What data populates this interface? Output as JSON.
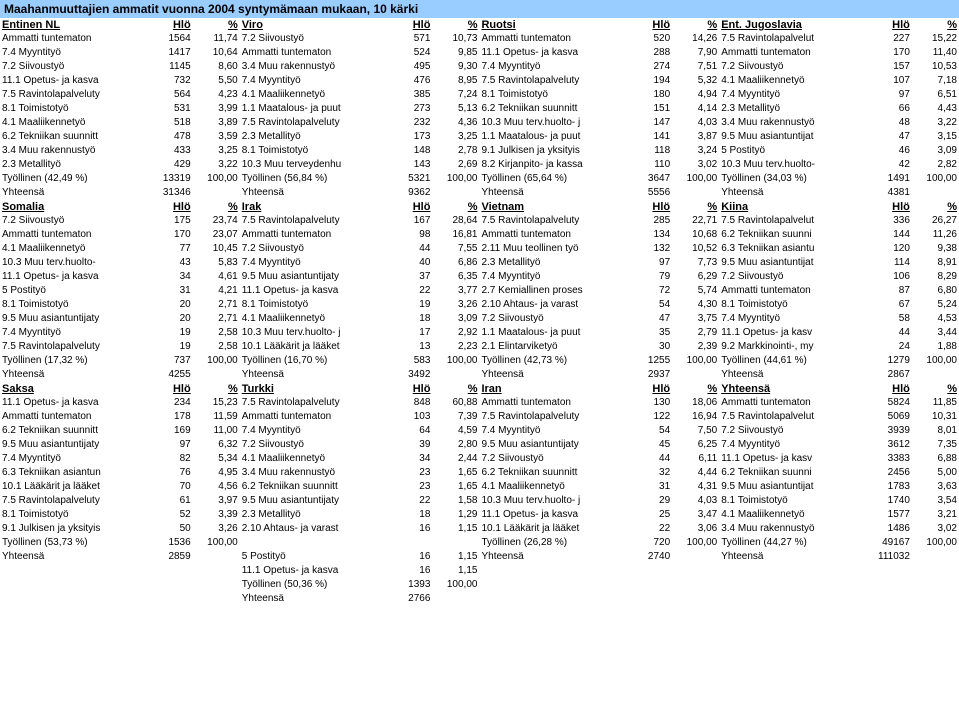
{
  "title": "Maahanmuuttajien ammatit vuonna 2004 syntymämaan mukaan, 10 kärki",
  "colors": {
    "header_bg": "#99ccff",
    "text": "#000000"
  },
  "col_labels": {
    "hlo": "Hlö",
    "pct": "%"
  },
  "countries": [
    [
      {
        "name": "Entinen NL",
        "rows": [
          [
            "Ammatti tuntematon",
            "1564",
            "11,74"
          ],
          [
            "7.4 Myyntityö",
            "1417",
            "10,64"
          ],
          [
            "7.2 Siivoustyö",
            "1145",
            "8,60"
          ],
          [
            "11.1 Opetus- ja kasva",
            "732",
            "5,50"
          ],
          [
            "7.5 Ravintolapalveluty",
            "564",
            "4,23"
          ],
          [
            "8.1 Toimistotyö",
            "531",
            "3,99"
          ],
          [
            "4.1 Maaliikennetyö",
            "518",
            "3,89"
          ],
          [
            "6.2 Tekniikan suunnitt",
            "478",
            "3,59"
          ],
          [
            "3.4 Muu rakennustyö",
            "433",
            "3,25"
          ],
          [
            "2.3 Metallityö",
            "429",
            "3,22"
          ]
        ],
        "emp": [
          "Työllinen (42,49 %)",
          "13319",
          "100,00"
        ],
        "tot": [
          "Yhteensä",
          "31346",
          ""
        ]
      },
      {
        "name": "Viro",
        "rows": [
          [
            "7.2 Siivoustyö",
            "571",
            "10,73"
          ],
          [
            "Ammatti tuntematon",
            "524",
            "9,85"
          ],
          [
            "3.4 Muu rakennustyö",
            "495",
            "9,30"
          ],
          [
            "7.4 Myyntityö",
            "476",
            "8,95"
          ],
          [
            "4.1 Maaliikennetyö",
            "385",
            "7,24"
          ],
          [
            "1.1 Maatalous- ja puut",
            "273",
            "5,13"
          ],
          [
            "7.5 Ravintolapalveluty",
            "232",
            "4,36"
          ],
          [
            "2.3 Metallityö",
            "173",
            "3,25"
          ],
          [
            "8.1 Toimistotyö",
            "148",
            "2,78"
          ],
          [
            "10.3 Muu terveydenhu",
            "143",
            "2,69"
          ]
        ],
        "emp": [
          "Työllinen (56,84 %)",
          "5321",
          "100,00"
        ],
        "tot": [
          "Yhteensä",
          "9362",
          ""
        ]
      },
      {
        "name": "Ruotsi",
        "rows": [
          [
            "Ammatti tuntematon",
            "520",
            "14,26"
          ],
          [
            "11.1 Opetus- ja kasva",
            "288",
            "7,90"
          ],
          [
            "7.4 Myyntityö",
            "274",
            "7,51"
          ],
          [
            "7.5 Ravintolapalveluty",
            "194",
            "5,32"
          ],
          [
            "8.1 Toimistotyö",
            "180",
            "4,94"
          ],
          [
            "6.2 Tekniikan suunnitt",
            "151",
            "4,14"
          ],
          [
            "10.3 Muu terv.huolto- j",
            "147",
            "4,03"
          ],
          [
            "1.1 Maatalous- ja puut",
            "141",
            "3,87"
          ],
          [
            "9.1 Julkisen ja yksityis",
            "118",
            "3,24"
          ],
          [
            "8.2 Kirjanpito- ja kassa",
            "110",
            "3,02"
          ]
        ],
        "emp": [
          "Työllinen (65,64 %)",
          "3647",
          "100,00"
        ],
        "tot": [
          "Yhteensä",
          "5556",
          ""
        ]
      },
      {
        "name": "Ent. Jugoslavia",
        "rows": [
          [
            "7.5 Ravintolapalvelut",
            "227",
            "15,22"
          ],
          [
            "Ammatti tuntematon",
            "170",
            "11,40"
          ],
          [
            "7.2 Siivoustyö",
            "157",
            "10,53"
          ],
          [
            "4.1 Maaliikennetyö",
            "107",
            "7,18"
          ],
          [
            "7.4 Myyntityö",
            "97",
            "6,51"
          ],
          [
            "2.3 Metallityö",
            "66",
            "4,43"
          ],
          [
            "3.4 Muu rakennustyö",
            "48",
            "3,22"
          ],
          [
            "9.5 Muu asiantuntijat",
            "47",
            "3,15"
          ],
          [
            "5 Postityö",
            "46",
            "3,09"
          ],
          [
            "10.3 Muu terv.huolto-",
            "42",
            "2,82"
          ]
        ],
        "emp": [
          "Työllinen (34,03 %)",
          "1491",
          "100,00"
        ],
        "tot": [
          "Yhteensä",
          "4381",
          ""
        ]
      }
    ],
    [
      {
        "name": "Somalia",
        "rows": [
          [
            "7.2 Siivoustyö",
            "175",
            "23,74"
          ],
          [
            "Ammatti tuntematon",
            "170",
            "23,07"
          ],
          [
            "4.1 Maaliikennetyö",
            "77",
            "10,45"
          ],
          [
            "10.3 Muu terv.huolto-",
            "43",
            "5,83"
          ],
          [
            "11.1 Opetus- ja kasva",
            "34",
            "4,61"
          ],
          [
            "5 Postityö",
            "31",
            "4,21"
          ],
          [
            "8.1 Toimistotyö",
            "20",
            "2,71"
          ],
          [
            "9.5 Muu asiantuntijaty",
            "20",
            "2,71"
          ],
          [
            "7.4 Myyntityö",
            "19",
            "2,58"
          ],
          [
            "7.5 Ravintolapalveluty",
            "19",
            "2,58"
          ]
        ],
        "emp": [
          "Työllinen (17,32 %)",
          "737",
          "100,00"
        ],
        "tot": [
          "Yhteensä",
          "4255",
          ""
        ]
      },
      {
        "name": "Irak",
        "rows": [
          [
            "7.5 Ravintolapalveluty",
            "167",
            "28,64"
          ],
          [
            "Ammatti tuntematon",
            "98",
            "16,81"
          ],
          [
            "7.2 Siivoustyö",
            "44",
            "7,55"
          ],
          [
            "7.4 Myyntityö",
            "40",
            "6,86"
          ],
          [
            "9.5 Muu asiantuntijaty",
            "37",
            "6,35"
          ],
          [
            "11.1 Opetus- ja kasva",
            "22",
            "3,77"
          ],
          [
            "8.1 Toimistotyö",
            "19",
            "3,26"
          ],
          [
            "4.1 Maaliikennetyö",
            "18",
            "3,09"
          ],
          [
            "10.3 Muu terv.huolto- j",
            "17",
            "2,92"
          ],
          [
            "10.1 Lääkärit ja lääket",
            "13",
            "2,23"
          ]
        ],
        "emp": [
          "Työllinen (16,70 %)",
          "583",
          "100,00"
        ],
        "tot": [
          "Yhteensä",
          "3492",
          ""
        ]
      },
      {
        "name": "Vietnam",
        "rows": [
          [
            "7.5 Ravintolapalveluty",
            "285",
            "22,71"
          ],
          [
            "Ammatti tuntematon",
            "134",
            "10,68"
          ],
          [
            "2.11 Muu teollinen työ",
            "132",
            "10,52"
          ],
          [
            "2.3 Metallityö",
            "97",
            "7,73"
          ],
          [
            "7.4 Myyntityö",
            "79",
            "6,29"
          ],
          [
            "2.7 Kemiallinen proses",
            "72",
            "5,74"
          ],
          [
            "2.10 Ahtaus- ja varast",
            "54",
            "4,30"
          ],
          [
            "7.2 Siivoustyö",
            "47",
            "3,75"
          ],
          [
            "1.1 Maatalous- ja puut",
            "35",
            "2,79"
          ],
          [
            "2.1 Elintarviketyö",
            "30",
            "2,39"
          ]
        ],
        "emp": [
          "Työllinen (42,73 %)",
          "1255",
          "100,00"
        ],
        "tot": [
          "Yhteensä",
          "2937",
          ""
        ]
      },
      {
        "name": "Kiina",
        "rows": [
          [
            "7.5 Ravintolapalvelut",
            "336",
            "26,27"
          ],
          [
            "6.2 Tekniikan suunni",
            "144",
            "11,26"
          ],
          [
            "6.3 Tekniikan asiantu",
            "120",
            "9,38"
          ],
          [
            "9.5 Muu asiantuntijat",
            "114",
            "8,91"
          ],
          [
            "7.2 Siivoustyö",
            "106",
            "8,29"
          ],
          [
            "Ammatti tuntematon",
            "87",
            "6,80"
          ],
          [
            "8.1 Toimistotyö",
            "67",
            "5,24"
          ],
          [
            "7.4 Myyntityö",
            "58",
            "4,53"
          ],
          [
            "11.1 Opetus- ja kasv",
            "44",
            "3,44"
          ],
          [
            "9.2 Markkinointi-, my",
            "24",
            "1,88"
          ]
        ],
        "emp": [
          "Työllinen (44,61 %)",
          "1279",
          "100,00"
        ],
        "tot": [
          "Yhteensä",
          "2867",
          ""
        ]
      }
    ],
    [
      {
        "name": "Saksa",
        "rows": [
          [
            "11.1 Opetus- ja kasva",
            "234",
            "15,23"
          ],
          [
            "Ammatti tuntematon",
            "178",
            "11,59"
          ],
          [
            "6.2 Tekniikan suunnitt",
            "169",
            "11,00"
          ],
          [
            "9.5 Muu asiantuntijaty",
            "97",
            "6,32"
          ],
          [
            "7.4 Myyntityö",
            "82",
            "5,34"
          ],
          [
            "6.3 Tekniikan asiantun",
            "76",
            "4,95"
          ],
          [
            "10.1 Lääkärit ja lääket",
            "70",
            "4,56"
          ],
          [
            "7.5 Ravintolapalveluty",
            "61",
            "3,97"
          ],
          [
            "8.1 Toimistotyö",
            "52",
            "3,39"
          ],
          [
            "9.1 Julkisen ja yksityis",
            "50",
            "3,26"
          ]
        ],
        "emp": [
          "Työllinen (53,73 %)",
          "1536",
          "100,00"
        ],
        "tot": [
          "Yhteensä",
          "2859",
          ""
        ]
      },
      {
        "name": "Turkki",
        "rows": [
          [
            "7.5 Ravintolapalveluty",
            "848",
            "60,88"
          ],
          [
            "Ammatti tuntematon",
            "103",
            "7,39"
          ],
          [
            "7.4 Myyntityö",
            "64",
            "4,59"
          ],
          [
            "7.2 Siivoustyö",
            "39",
            "2,80"
          ],
          [
            "4.1 Maaliikennetyö",
            "34",
            "2,44"
          ],
          [
            "3.4 Muu rakennustyö",
            "23",
            "1,65"
          ],
          [
            "6.2 Tekniikan suunnitt",
            "23",
            "1,65"
          ],
          [
            "9.5 Muu asiantuntijaty",
            "22",
            "1,58"
          ],
          [
            "2.3 Metallityö",
            "18",
            "1,29"
          ],
          [
            "2.10 Ahtaus- ja varast",
            "16",
            "1,15"
          ]
        ],
        "emp": [
          "",
          "",
          ""
        ],
        "tot": [
          "5 Postityö",
          "16",
          "1,15"
        ],
        "extra1": [
          "11.1 Opetus- ja kasva",
          "16",
          "1,15"
        ],
        "extra2": [
          "Työllinen (50,36 %)",
          "1393",
          "100,00"
        ],
        "extra3": [
          "Yhteensä",
          "2766",
          ""
        ]
      },
      {
        "name": "Iran",
        "rows": [
          [
            "Ammatti tuntematon",
            "130",
            "18,06"
          ],
          [
            "7.5 Ravintolapalveluty",
            "122",
            "16,94"
          ],
          [
            "7.4 Myyntityö",
            "54",
            "7,50"
          ],
          [
            "9.5 Muu asiantuntijaty",
            "45",
            "6,25"
          ],
          [
            "7.2 Siivoustyö",
            "44",
            "6,11"
          ],
          [
            "6.2 Tekniikan suunnitt",
            "32",
            "4,44"
          ],
          [
            "4.1 Maaliikennetyö",
            "31",
            "4,31"
          ],
          [
            "10.3 Muu terv.huolto- j",
            "29",
            "4,03"
          ],
          [
            "11.1 Opetus- ja kasva",
            "25",
            "3,47"
          ],
          [
            "10.1 Lääkärit ja lääket",
            "22",
            "3,06"
          ]
        ],
        "emp": [
          "Työllinen (26,28 %)",
          "720",
          "100,00"
        ],
        "tot": [
          "Yhteensä",
          "2740",
          ""
        ]
      },
      {
        "name": "Yhteensä",
        "rows": [
          [
            "Ammatti tuntematon",
            "5824",
            "11,85"
          ],
          [
            "7.5 Ravintolapalvelut",
            "5069",
            "10,31"
          ],
          [
            "7.2 Siivoustyö",
            "3939",
            "8,01"
          ],
          [
            "7.4 Myyntityö",
            "3612",
            "7,35"
          ],
          [
            "11.1 Opetus- ja kasv",
            "3383",
            "6,88"
          ],
          [
            "6.2 Tekniikan suunni",
            "2456",
            "5,00"
          ],
          [
            "9.5 Muu asiantuntijat",
            "1783",
            "3,63"
          ],
          [
            "8.1 Toimistotyö",
            "1740",
            "3,54"
          ],
          [
            "4.1 Maaliikennetyö",
            "1577",
            "3,21"
          ],
          [
            "3.4 Muu rakennustyö",
            "1486",
            "3,02"
          ]
        ],
        "emp": [
          "Työllinen (44,27 %)",
          "49167",
          "100,00"
        ],
        "tot": [
          "Yhteensä",
          "111032",
          ""
        ]
      }
    ]
  ]
}
